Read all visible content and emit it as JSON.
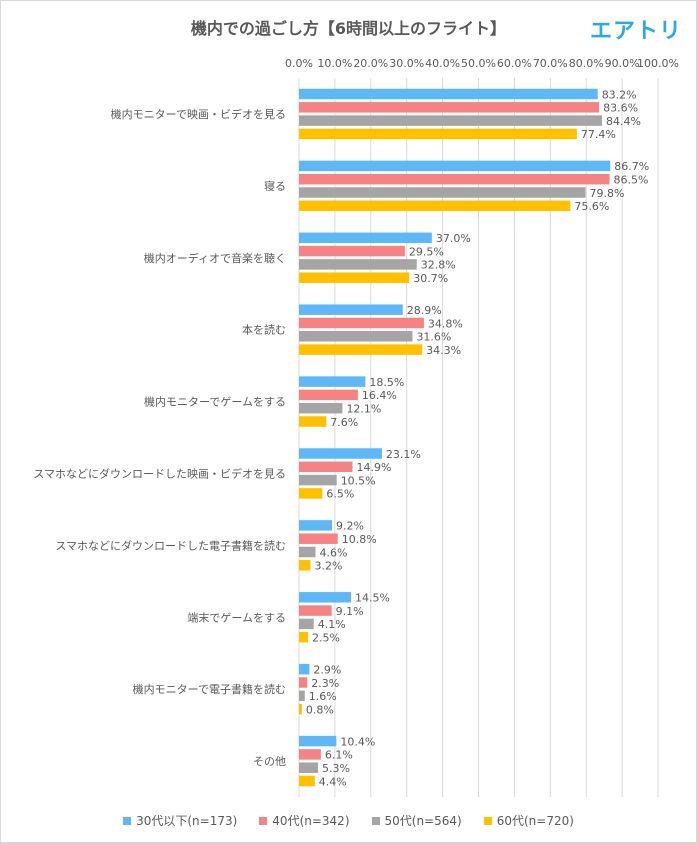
{
  "title": "機内での過ごし方【6時間以上のフライト】",
  "logo_text": "エアトリ",
  "colors": {
    "title": "#595959",
    "logo": "#29a9e9",
    "grid": "#d9d9d9",
    "text": "#595959"
  },
  "chart_data": {
    "type": "bar",
    "orientation": "horizontal",
    "xlim": [
      0,
      100
    ],
    "x_ticks": [
      "0.0%",
      "10.0%",
      "20.0%",
      "30.0%",
      "40.0%",
      "50.0%",
      "60.0%",
      "70.0%",
      "80.0%",
      "90.0%",
      "100.0%"
    ],
    "x_axis_position": "top",
    "grid": true,
    "legend_position": "bottom",
    "categories": [
      "機内モニターで映画・ビデオを見る",
      "寝る",
      "機内オーディオで音楽を聴く",
      "本を読む",
      "機内モニターでゲームをする",
      "スマホなどにダウンロードした映画・ビデオを見る",
      "スマホなどにダウンロードした電子書籍を読む",
      "端末でゲームをする",
      "機内モニターで電子書籍を読む",
      "その他"
    ],
    "series": [
      {
        "name": "30代以下(n=173)",
        "color": "#5eb8f7",
        "values": [
          83.2,
          86.7,
          37.0,
          28.9,
          18.5,
          23.1,
          9.2,
          14.5,
          2.9,
          10.4
        ],
        "labels": [
          "83.2%",
          "86.7%",
          "37.0%",
          "28.9%",
          "18.5%",
          "23.1%",
          "9.2%",
          "14.5%",
          "2.9%",
          "10.4%"
        ]
      },
      {
        "name": "40代(n=342)",
        "color": "#f58383",
        "values": [
          83.6,
          86.5,
          29.5,
          34.8,
          16.4,
          14.9,
          10.8,
          9.1,
          2.3,
          6.1
        ],
        "labels": [
          "83.6%",
          "86.5%",
          "29.5%",
          "34.8%",
          "16.4%",
          "14.9%",
          "10.8%",
          "9.1%",
          "2.3%",
          "6.1%"
        ]
      },
      {
        "name": "50代(n=564)",
        "color": "#a5a5a5",
        "values": [
          84.4,
          79.8,
          32.8,
          31.6,
          12.1,
          10.5,
          4.6,
          4.1,
          1.6,
          5.3
        ],
        "labels": [
          "84.4%",
          "79.8%",
          "32.8%",
          "31.6%",
          "12.1%",
          "10.5%",
          "4.6%",
          "4.1%",
          "1.6%",
          "5.3%"
        ]
      },
      {
        "name": "60代(n=720)",
        "color": "#ffc000",
        "values": [
          77.4,
          75.6,
          30.7,
          34.3,
          7.6,
          6.5,
          3.2,
          2.5,
          0.8,
          4.4
        ],
        "labels": [
          "77.4%",
          "75.6%",
          "30.7%",
          "34.3%",
          "7.6%",
          "6.5%",
          "3.2%",
          "2.5%",
          "0.8%",
          "4.4%"
        ]
      }
    ]
  }
}
